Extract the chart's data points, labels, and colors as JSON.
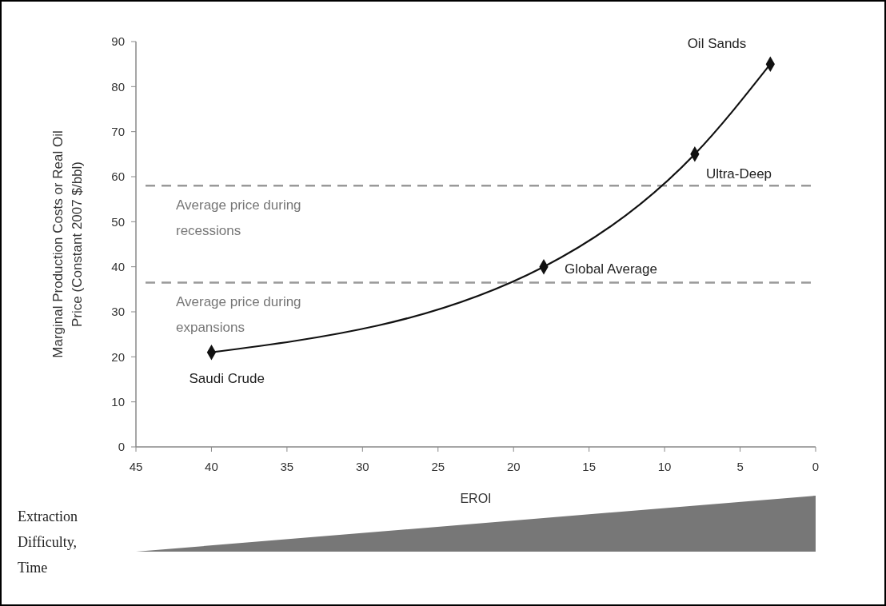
{
  "chart_data": {
    "type": "line",
    "xlabel": "EROI",
    "ylabel": "Marginal Production Costs or Real Oil Price (Constant 2007 $/bbl)",
    "x": [
      40,
      18,
      8,
      3
    ],
    "series": [
      {
        "color": "#111111",
        "values": [
          21,
          40,
          65,
          85
        ]
      }
    ],
    "marker": "diamond",
    "line_style": "solid",
    "grid": false,
    "xlim": [
      45,
      0
    ],
    "xticks": [
      45,
      40,
      35,
      30,
      25,
      20,
      15,
      10,
      5,
      0
    ],
    "ylim": [
      0,
      90
    ],
    "yticks": [
      0,
      10,
      20,
      30,
      40,
      50,
      60,
      70,
      80,
      90
    ],
    "ref_lines": [
      {
        "axis": "y",
        "value": 58,
        "label": "Average price during recessions",
        "color": "#999999",
        "line_style": "dashed"
      },
      {
        "axis": "y",
        "value": 36.5,
        "label": "Average price during expansions",
        "color": "#999999",
        "line_style": "dashed"
      }
    ],
    "annotations": [
      {
        "text": "Saudi Crude",
        "x": 40,
        "y": 21
      },
      {
        "text": "Global Average",
        "x": 18,
        "y": 40
      },
      {
        "text": "Ultra-Deep",
        "x": 8,
        "y": 65
      },
      {
        "text": "Oil Sands",
        "x": 3,
        "y": 85
      },
      "Extraction Difficulty, Time"
    ]
  }
}
